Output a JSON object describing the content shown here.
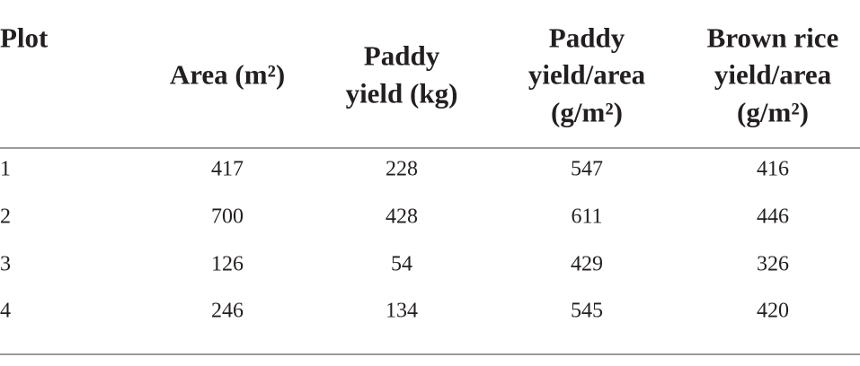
{
  "table": {
    "header": [
      [
        "Plot"
      ],
      [
        "Area (m²)"
      ],
      [
        "Paddy",
        "yield (kg)"
      ],
      [
        "Paddy",
        "yield/area",
        "(g/m²)"
      ],
      [
        "Brown rice",
        "yield/area",
        "(g/m²)"
      ]
    ],
    "rows": [
      [
        1,
        417,
        228,
        547,
        416
      ],
      [
        2,
        700,
        428,
        611,
        446
      ],
      [
        3,
        126,
        54,
        429,
        326
      ],
      [
        4,
        246,
        134,
        545,
        420
      ]
    ]
  }
}
